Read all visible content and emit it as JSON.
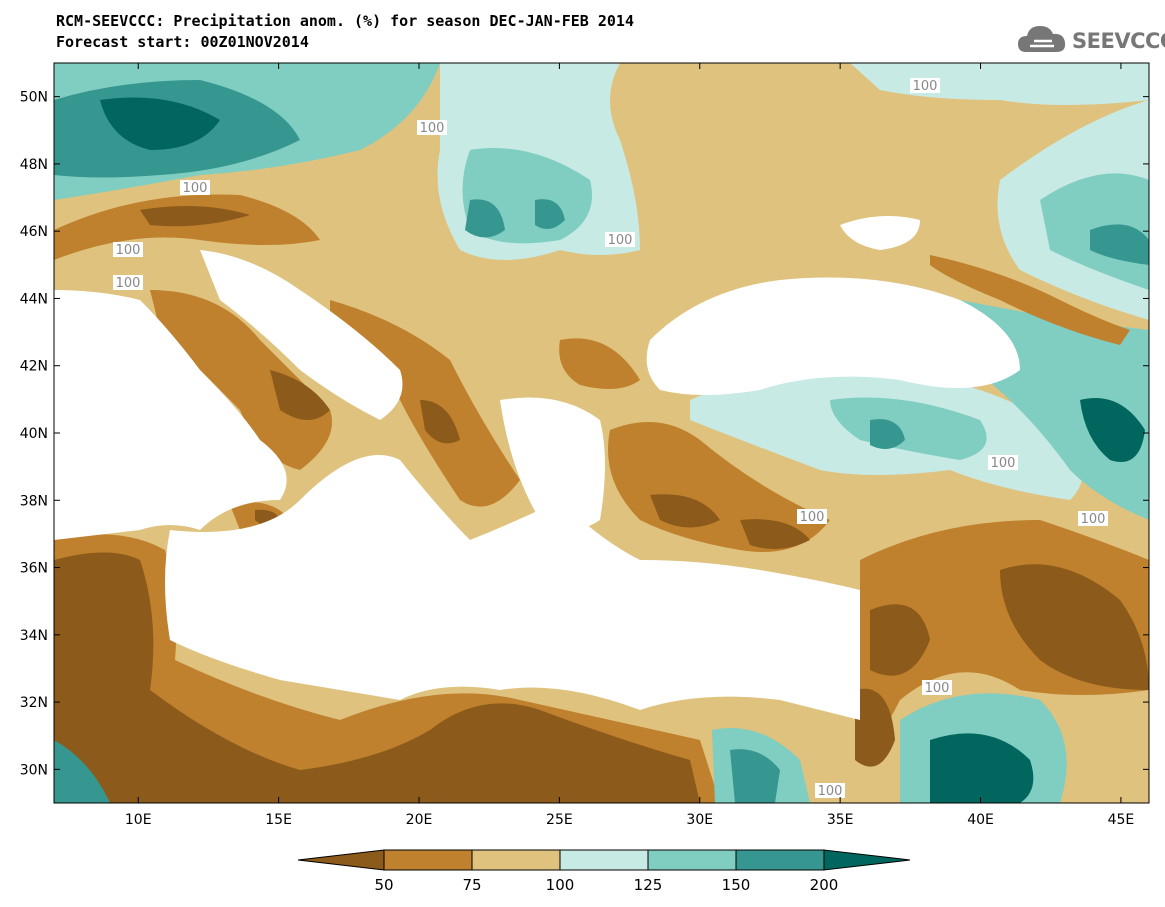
{
  "header": {
    "title": "RCM-SEEVCCC: Precipitation anom. (%) for season DEC-JAN-FEB 2014",
    "subtitle": "Forecast start: 00Z01NOV2014"
  },
  "logo": {
    "text": "SEEVCCC",
    "icon": "cloud-icon"
  },
  "map": {
    "lon_range": [
      7,
      46
    ],
    "lat_range": [
      29,
      51
    ],
    "lat_ticks": [
      "30N",
      "32N",
      "34N",
      "36N",
      "38N",
      "40N",
      "42N",
      "44N",
      "46N",
      "48N",
      "50N"
    ],
    "lon_ticks": [
      "10E",
      "15E",
      "20E",
      "25E",
      "30E",
      "35E",
      "40E",
      "45E"
    ],
    "contour_labels": [
      "100",
      "100",
      "100",
      "100",
      "100",
      "100",
      "100",
      "100",
      "100",
      "100",
      "100"
    ]
  },
  "colorbar": {
    "levels": [
      "50",
      "75",
      "100",
      "125",
      "150",
      "200"
    ],
    "colors": [
      "#8c5a1a",
      "#bf812d",
      "#dfc27d",
      "#c7eae5",
      "#80cdc1",
      "#35978f",
      "#01665e"
    ]
  },
  "colors": {
    "dark_brown": "#8c5a1a",
    "brown": "#bf812d",
    "tan": "#dfc27d",
    "light_teal": "#c7eae5",
    "teal": "#80cdc1",
    "dark_teal": "#35978f",
    "deep_teal": "#01665e",
    "sea": "#ffffff"
  }
}
